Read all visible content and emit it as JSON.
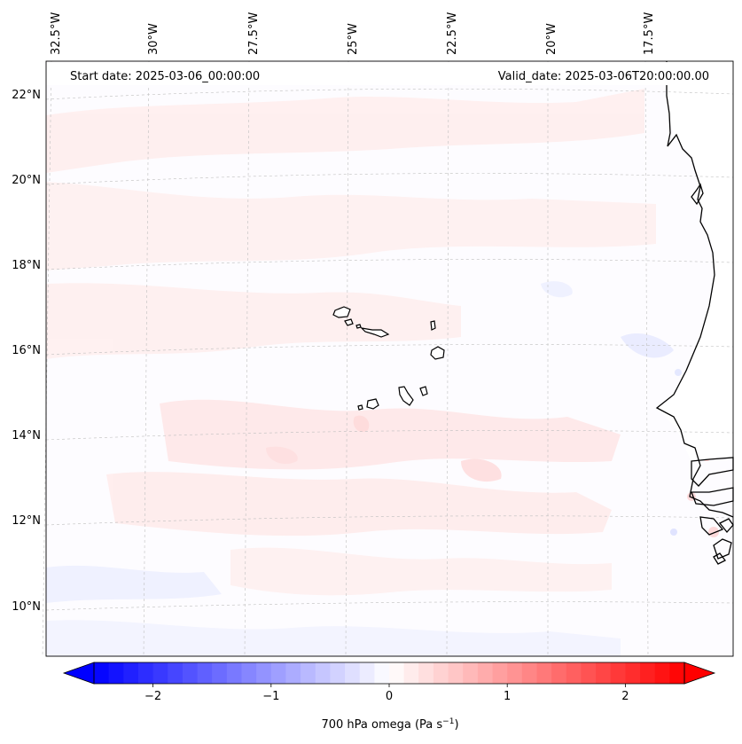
{
  "header": {
    "start_date": "Start date: 2025-03-06_00:00:00",
    "valid_date": "Valid_date: 2025-03-06T20:00:00.00"
  },
  "map": {
    "variable": "700 hPa omega",
    "lon_labels": [
      "32.5°W",
      "30°W",
      "27.5°W",
      "25°W",
      "22.5°W",
      "20°W",
      "17.5°W"
    ],
    "lat_labels": [
      "22°N",
      "20°N",
      "18°N",
      "16°N",
      "14°N",
      "12°N",
      "10°N"
    ],
    "grid": true,
    "land_color": "#ffffff",
    "coastline_color": "#000000"
  },
  "colorbar": {
    "label_prefix": "700 hPa omega (Pa s",
    "label_exp": "−1",
    "label_suffix": ")",
    "ticks": [
      {
        "value": -2,
        "label": "−2"
      },
      {
        "value": -1,
        "label": "−1"
      },
      {
        "value": 0,
        "label": "0"
      },
      {
        "value": 1,
        "label": "1"
      },
      {
        "value": 2,
        "label": "2"
      }
    ],
    "range": [
      -2.5,
      2.5
    ],
    "levels": 40,
    "extend": "both",
    "cmap": {
      "low": "#0000ff",
      "mid": "#ffffff",
      "high": "#ff0000"
    }
  }
}
